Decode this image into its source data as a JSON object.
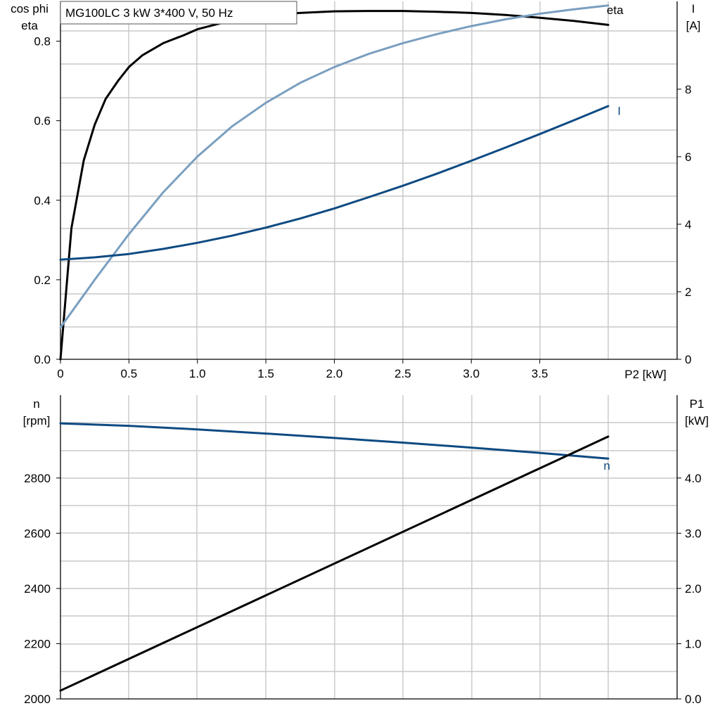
{
  "title": "MG100LC   3 kW   3*400 V, 50 Hz",
  "colors": {
    "eta": "#000000",
    "cos_phi": "#7a9fc0",
    "current": "#0d4a82",
    "speed": "#0d4a82",
    "p1": "#000000",
    "grid": "#c8c8c8"
  },
  "chart_data": [
    {
      "type": "line",
      "name": "upper",
      "xlabel": "P2 [kW]",
      "ylabel_left": [
        "cos phi",
        "eta"
      ],
      "ylabel_right": [
        "I",
        "[A]"
      ],
      "xlim": [
        0,
        4.0
      ],
      "ylim_left": [
        0,
        0.9
      ],
      "ylim_right": [
        0,
        10.6
      ],
      "xticks": [
        0,
        0.5,
        1.0,
        1.5,
        2.0,
        2.5,
        3.0,
        3.5
      ],
      "xtick_labels": [
        "0",
        "0.5",
        "1.0",
        "1.5",
        "2.0",
        "2.5",
        "3.0",
        "3.5"
      ],
      "yticks_left": [
        0.0,
        0.2,
        0.4,
        0.6,
        0.8
      ],
      "ytick_labels_left": [
        "0.0",
        "0.2",
        "0.4",
        "0.6",
        "0.8"
      ],
      "yticks_right": [
        0,
        2,
        4,
        6,
        8
      ],
      "ytick_labels_right": [
        "0",
        "2",
        "4",
        "6",
        "8"
      ],
      "grid": true,
      "series": [
        {
          "name": "eta",
          "axis": "left",
          "color": "#000000",
          "x": [
            0,
            0.08,
            0.17,
            0.25,
            0.33,
            0.42,
            0.5,
            0.6,
            0.75,
            0.9,
            1.0,
            1.25,
            1.5,
            1.75,
            2.0,
            2.25,
            2.5,
            2.75,
            3.0,
            3.25,
            3.5,
            3.75,
            4.0
          ],
          "y": [
            0.0,
            0.33,
            0.5,
            0.59,
            0.655,
            0.7,
            0.735,
            0.765,
            0.795,
            0.815,
            0.83,
            0.852,
            0.864,
            0.871,
            0.875,
            0.876,
            0.876,
            0.874,
            0.871,
            0.866,
            0.859,
            0.851,
            0.841
          ]
        },
        {
          "name": "cos phi",
          "axis": "left",
          "color": "#7a9fc0",
          "x": [
            0,
            0.25,
            0.5,
            0.75,
            1.0,
            1.25,
            1.5,
            1.75,
            2.0,
            2.25,
            2.5,
            2.75,
            3.0,
            3.25,
            3.5,
            3.75,
            4.0
          ],
          "y": [
            0.08,
            0.2,
            0.315,
            0.42,
            0.51,
            0.585,
            0.645,
            0.695,
            0.735,
            0.768,
            0.795,
            0.818,
            0.838,
            0.855,
            0.869,
            0.88,
            0.89
          ]
        },
        {
          "name": "I",
          "axis": "right",
          "color": "#0d4a82",
          "x": [
            0,
            0.25,
            0.5,
            0.75,
            1.0,
            1.25,
            1.5,
            1.75,
            2.0,
            2.25,
            2.5,
            2.75,
            3.0,
            3.25,
            3.5,
            3.75,
            4.0
          ],
          "y": [
            2.95,
            3.02,
            3.12,
            3.27,
            3.45,
            3.66,
            3.9,
            4.17,
            4.47,
            4.8,
            5.14,
            5.5,
            5.88,
            6.27,
            6.67,
            7.08,
            7.5
          ]
        }
      ],
      "labels": [
        {
          "series": "cos phi",
          "text": "cos phi",
          "x": 3.92,
          "y": 0.915
        },
        {
          "series": "eta",
          "text": "eta",
          "x": 4.05,
          "y": 0.868
        },
        {
          "series": "I",
          "text": "I",
          "x": 4.08,
          "y": 7.24
        }
      ]
    },
    {
      "type": "line",
      "name": "lower",
      "xlabel": "",
      "ylabel_left": [
        "n",
        "[rpm]"
      ],
      "ylabel_right": [
        "P1",
        "[kW]"
      ],
      "xlim": [
        0,
        4.0
      ],
      "ylim_left": [
        2000,
        3100
      ],
      "ylim_right": [
        0,
        5.5
      ],
      "yticks_left": [
        2000,
        2200,
        2400,
        2600,
        2800
      ],
      "ytick_labels_left": [
        "2000",
        "2200",
        "2400",
        "2600",
        "2800"
      ],
      "yticks_right": [
        0.0,
        1.0,
        2.0,
        3.0,
        4.0
      ],
      "ytick_labels_right": [
        "0.0",
        "1.0",
        "2.0",
        "3.0",
        "4.0"
      ],
      "grid": true,
      "series": [
        {
          "name": "n",
          "axis": "left",
          "color": "#0d4a82",
          "x": [
            0,
            0.5,
            1.0,
            1.5,
            2.0,
            2.5,
            3.0,
            3.5,
            4.0
          ],
          "y": [
            2998,
            2989,
            2976,
            2961,
            2945,
            2928,
            2910,
            2891,
            2870
          ]
        },
        {
          "name": "P1",
          "axis": "right",
          "color": "#000000",
          "x": [
            0,
            4.0
          ],
          "y": [
            0.15,
            4.75
          ]
        }
      ],
      "labels": [
        {
          "series": "n",
          "text": "n",
          "x": 3.99,
          "y": 2830
        }
      ]
    }
  ]
}
